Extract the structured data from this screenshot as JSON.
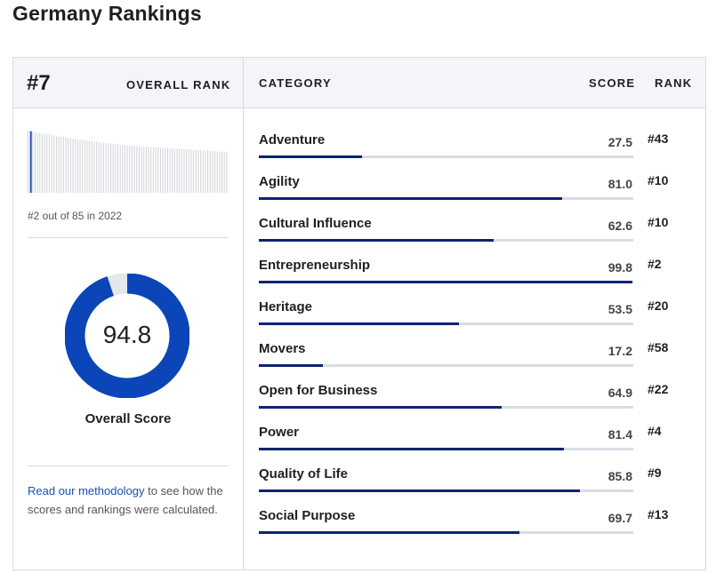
{
  "page": {
    "title": "Germany Rankings"
  },
  "overall": {
    "rank": "#7",
    "rank_label": "OVERALL RANK",
    "history_text": "#2 out of 85 in 2022",
    "score_value": 94.8,
    "score_display": "94.8",
    "score_label": "Overall Score",
    "methodology_link": "Read our methodology",
    "methodology_text": " to see how the scores and rankings were calculated.",
    "highlight_color": "#1a4fb8",
    "donut_color": "#0b45b8"
  },
  "table_headers": {
    "category": "CATEGORY",
    "score": "SCORE",
    "rank": "RANK"
  },
  "categories": [
    {
      "name": "Adventure",
      "score": "27.5",
      "score_value": 27.5,
      "rank": "#43"
    },
    {
      "name": "Agility",
      "score": "81.0",
      "score_value": 81.0,
      "rank": "#10"
    },
    {
      "name": "Cultural Influence",
      "score": "62.6",
      "score_value": 62.6,
      "rank": "#10"
    },
    {
      "name": "Entrepreneurship",
      "score": "99.8",
      "score_value": 99.8,
      "rank": "#2"
    },
    {
      "name": "Heritage",
      "score": "53.5",
      "score_value": 53.5,
      "rank": "#20"
    },
    {
      "name": "Movers",
      "score": "17.2",
      "score_value": 17.2,
      "rank": "#58"
    },
    {
      "name": "Open for Business",
      "score": "64.9",
      "score_value": 64.9,
      "rank": "#22"
    },
    {
      "name": "Power",
      "score": "81.4",
      "score_value": 81.4,
      "rank": "#4"
    },
    {
      "name": "Quality of Life",
      "score": "85.8",
      "score_value": 85.8,
      "rank": "#9"
    },
    {
      "name": "Social Purpose",
      "score": "69.7",
      "score_value": 69.7,
      "rank": "#13"
    }
  ],
  "ranking_sparkline": {
    "total_countries": 85,
    "highlight_rank": 2,
    "scores": [
      100,
      99,
      98,
      97,
      97,
      96,
      95,
      95,
      94,
      94,
      93,
      92,
      92,
      91,
      90,
      90,
      89,
      88,
      88,
      87,
      86,
      86,
      85,
      85,
      84,
      84,
      83,
      83,
      82,
      82,
      81,
      81,
      80,
      80,
      79,
      79,
      79,
      78,
      78,
      77,
      77,
      77,
      76,
      76,
      76,
      75,
      75,
      75,
      74,
      74,
      74,
      74,
      73,
      73,
      73,
      73,
      72,
      72,
      72,
      72,
      71,
      71,
      71,
      71,
      71,
      70,
      70,
      70,
      70,
      70,
      69,
      69,
      69,
      69,
      68,
      68,
      68,
      68,
      67,
      67,
      67,
      66,
      66,
      66,
      65
    ]
  }
}
